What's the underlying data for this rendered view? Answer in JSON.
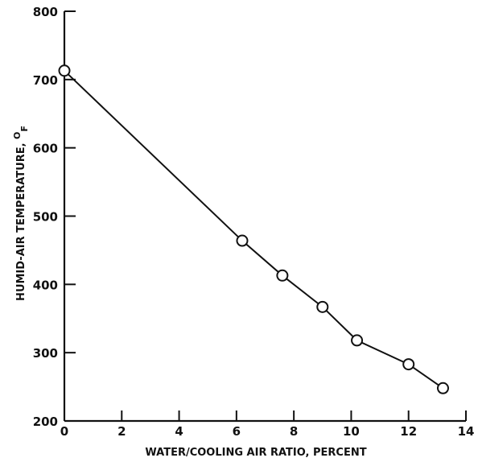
{
  "chart_data": {
    "type": "line",
    "title": "",
    "xlabel": "WATER/COOLING AIR RATIO, PERCENT",
    "ylabel": "HUMID-AIR TEMPERATURE, ",
    "ylabel_unit_sup": "O",
    "ylabel_unit_sub": "F",
    "xlim": [
      0,
      14
    ],
    "ylim": [
      200,
      800
    ],
    "x_ticks": [
      0,
      2,
      4,
      6,
      8,
      10,
      12,
      14
    ],
    "y_ticks": [
      200,
      300,
      400,
      500,
      600,
      700,
      800
    ],
    "grid": false,
    "legend": "none",
    "series": [
      {
        "x": [
          0,
          6.2,
          7.6,
          9.0,
          10.2,
          12.0,
          13.2
        ],
        "y": [
          713,
          464,
          413,
          367,
          318,
          283,
          248
        ]
      }
    ]
  }
}
